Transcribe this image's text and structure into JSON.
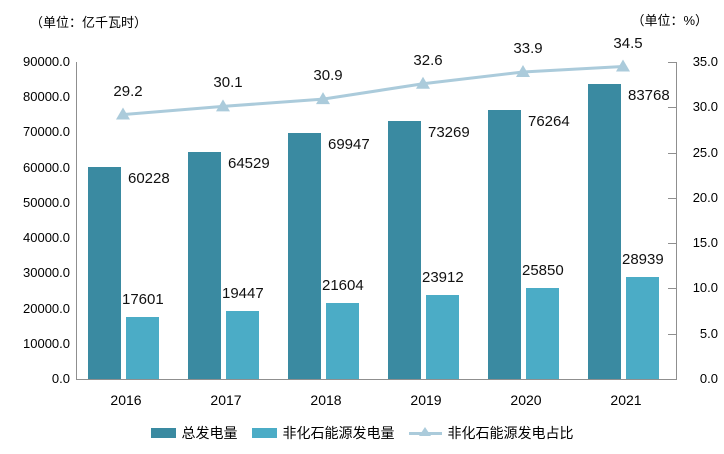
{
  "chart_data": {
    "type": "bar+line",
    "unit_label_left": "（单位：亿千瓦时）",
    "unit_label_right": "（单位：%）",
    "categories": [
      "2016",
      "2017",
      "2018",
      "2019",
      "2020",
      "2021"
    ],
    "series": [
      {
        "name": "总发电量",
        "type": "bar",
        "color": "#3A8AA1",
        "axis": "left",
        "values": [
          60228,
          64529,
          69947,
          73269,
          76264,
          83768
        ]
      },
      {
        "name": "非化石能源发电量",
        "type": "bar",
        "color": "#4BACC6",
        "axis": "left",
        "values": [
          17601,
          19447,
          21604,
          23912,
          25850,
          28939
        ]
      },
      {
        "name": "非化石能源发电占比",
        "type": "line",
        "color": "#ABCBDB",
        "axis": "right",
        "marker": "triangle-up",
        "values": [
          29.2,
          30.1,
          30.9,
          32.6,
          33.9,
          34.5
        ]
      }
    ],
    "left_axis": {
      "min": 0,
      "max": 90000,
      "step": 10000,
      "tick_labels": [
        "90000.0",
        "80000.0",
        "70000.0",
        "60000.0",
        "50000.0",
        "40000.0",
        "30000.0",
        "20000.0",
        "10000.0",
        "0.0"
      ]
    },
    "right_axis": {
      "min": 0,
      "max": 35,
      "step": 5,
      "tick_labels": [
        "35.0",
        "30.0",
        "25.0",
        "20.0",
        "15.0",
        "10.0",
        "5.0",
        "0.0"
      ]
    },
    "legend_position": "bottom",
    "grid": false,
    "colors": {
      "axis_line": "#8f8f8f",
      "label_text": "#111111",
      "background": "#ffffff"
    }
  }
}
